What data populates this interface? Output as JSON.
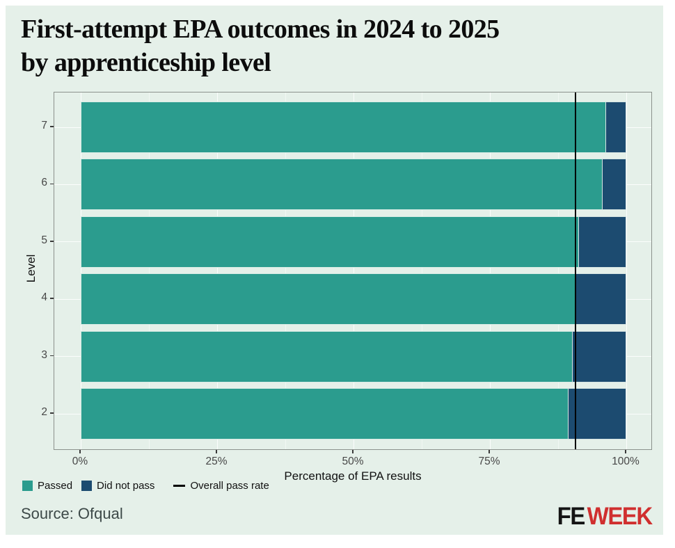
{
  "title": {
    "line1": "First-attempt EPA outcomes in 2024 to 2025",
    "line2": "by apprenticeship level"
  },
  "chart_data": {
    "type": "bar",
    "orientation": "horizontal",
    "stacked": true,
    "units": "percent",
    "title": "First-attempt EPA outcomes in 2024 to 2025 by apprenticeship level",
    "categories": [
      "7",
      "6",
      "5",
      "4",
      "3",
      "2"
    ],
    "series": [
      {
        "name": "Passed",
        "color": "#2b9c8e",
        "values": [
          96.2,
          95.6,
          91.2,
          90.8,
          90.1,
          89.4
        ]
      },
      {
        "name": "Did not pass",
        "color": "#1c4b70",
        "values": [
          3.8,
          4.4,
          8.8,
          9.2,
          9.9,
          10.6
        ]
      }
    ],
    "reference_line": {
      "name": "Overall pass rate",
      "value": 90.7,
      "color": "#000000"
    },
    "xlabel": "Percentage of EPA results",
    "ylabel": "Level",
    "xlim": [
      0,
      100
    ],
    "x_ticks": [
      {
        "value": 0,
        "label": "0%"
      },
      {
        "value": 25,
        "label": "25%"
      },
      {
        "value": 50,
        "label": "50%"
      },
      {
        "value": 75,
        "label": "75%"
      },
      {
        "value": 100,
        "label": "100%"
      }
    ],
    "x_minor_ticks": [
      12.5,
      37.5,
      62.5,
      87.5
    ],
    "grid": true,
    "legend_position": "bottom",
    "background": "#e5f0e9"
  },
  "legend": {
    "items": [
      {
        "label": "Passed",
        "swatch": "square",
        "color": "#2b9c8e"
      },
      {
        "label": "Did not pass",
        "swatch": "square",
        "color": "#1c4b70"
      },
      {
        "label": "Overall pass rate",
        "swatch": "line",
        "color": "#000000"
      }
    ]
  },
  "source": "Source: Ofqual",
  "logo": {
    "fe": "FE",
    "week": "WEEK",
    "fe_color": "#141414",
    "week_color": "#d02f2f"
  }
}
